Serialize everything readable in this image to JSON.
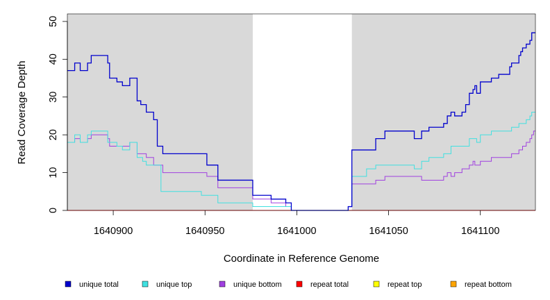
{
  "chart_data": {
    "type": "line",
    "title": "",
    "xlabel": "Coordinate in Reference Genome",
    "ylabel": "Read Coverage Depth",
    "xlim": [
      1640875,
      1641130
    ],
    "ylim": [
      0,
      52
    ],
    "x_ticks": [
      1640900,
      1640950,
      1641000,
      1641050,
      1641100
    ],
    "y_ticks": [
      0,
      10,
      20,
      30,
      40,
      50
    ],
    "shaded_regions": [
      [
        1640875,
        1640976
      ],
      [
        1641030,
        1641130
      ]
    ],
    "shade_color": "#d9d9d9",
    "legend_position": "bottom",
    "series": [
      {
        "name": "unique total",
        "color": "#0000cd",
        "points": [
          [
            1640875,
            37
          ],
          [
            1640879,
            37
          ],
          [
            1640879,
            39
          ],
          [
            1640882,
            39
          ],
          [
            1640882,
            37
          ],
          [
            1640886,
            37
          ],
          [
            1640886,
            39
          ],
          [
            1640888,
            39
          ],
          [
            1640888,
            41
          ],
          [
            1640897,
            41
          ],
          [
            1640897,
            39
          ],
          [
            1640898,
            39
          ],
          [
            1640898,
            35
          ],
          [
            1640902,
            35
          ],
          [
            1640902,
            34
          ],
          [
            1640905,
            34
          ],
          [
            1640905,
            33
          ],
          [
            1640909,
            33
          ],
          [
            1640909,
            35
          ],
          [
            1640913,
            35
          ],
          [
            1640913,
            29
          ],
          [
            1640915,
            29
          ],
          [
            1640915,
            28
          ],
          [
            1640918,
            28
          ],
          [
            1640918,
            26
          ],
          [
            1640922,
            26
          ],
          [
            1640922,
            24
          ],
          [
            1640924,
            24
          ],
          [
            1640924,
            17
          ],
          [
            1640927,
            17
          ],
          [
            1640927,
            15
          ],
          [
            1640951,
            15
          ],
          [
            1640951,
            12
          ],
          [
            1640957,
            12
          ],
          [
            1640957,
            8
          ],
          [
            1640976,
            8
          ],
          [
            1640976,
            4
          ],
          [
            1640986,
            4
          ],
          [
            1640986,
            3
          ],
          [
            1640994,
            3
          ],
          [
            1640994,
            2
          ],
          [
            1640997,
            2
          ],
          [
            1640997,
            0
          ],
          [
            1641028,
            0
          ],
          [
            1641028,
            1
          ],
          [
            1641030,
            1
          ],
          [
            1641030,
            16
          ],
          [
            1641043,
            16
          ],
          [
            1641043,
            19
          ],
          [
            1641048,
            19
          ],
          [
            1641048,
            21
          ],
          [
            1641064,
            21
          ],
          [
            1641064,
            19
          ],
          [
            1641068,
            19
          ],
          [
            1641068,
            21
          ],
          [
            1641072,
            21
          ],
          [
            1641072,
            22
          ],
          [
            1641080,
            22
          ],
          [
            1641080,
            23
          ],
          [
            1641082,
            23
          ],
          [
            1641082,
            25
          ],
          [
            1641084,
            25
          ],
          [
            1641084,
            26
          ],
          [
            1641086,
            26
          ],
          [
            1641086,
            25
          ],
          [
            1641090,
            25
          ],
          [
            1641090,
            26
          ],
          [
            1641092,
            26
          ],
          [
            1641092,
            28
          ],
          [
            1641094,
            28
          ],
          [
            1641094,
            31
          ],
          [
            1641096,
            31
          ],
          [
            1641096,
            32
          ],
          [
            1641097,
            32
          ],
          [
            1641097,
            33
          ],
          [
            1641098,
            33
          ],
          [
            1641098,
            31
          ],
          [
            1641100,
            31
          ],
          [
            1641100,
            34
          ],
          [
            1641106,
            34
          ],
          [
            1641106,
            35
          ],
          [
            1641110,
            35
          ],
          [
            1641110,
            36
          ],
          [
            1641116,
            36
          ],
          [
            1641116,
            38
          ],
          [
            1641117,
            38
          ],
          [
            1641117,
            39
          ],
          [
            1641121,
            39
          ],
          [
            1641121,
            41
          ],
          [
            1641122,
            41
          ],
          [
            1641122,
            42
          ],
          [
            1641123,
            42
          ],
          [
            1641123,
            43
          ],
          [
            1641125,
            43
          ],
          [
            1641125,
            44
          ],
          [
            1641127,
            44
          ],
          [
            1641127,
            45
          ],
          [
            1641128,
            45
          ],
          [
            1641128,
            47
          ],
          [
            1641130,
            47
          ]
        ]
      },
      {
        "name": "unique top",
        "color": "#40e0e0",
        "points": [
          [
            1640875,
            18
          ],
          [
            1640879,
            18
          ],
          [
            1640879,
            20
          ],
          [
            1640882,
            20
          ],
          [
            1640882,
            18
          ],
          [
            1640886,
            18
          ],
          [
            1640886,
            20
          ],
          [
            1640888,
            20
          ],
          [
            1640888,
            21
          ],
          [
            1640897,
            21
          ],
          [
            1640897,
            18
          ],
          [
            1640902,
            18
          ],
          [
            1640902,
            17
          ],
          [
            1640905,
            17
          ],
          [
            1640905,
            16
          ],
          [
            1640909,
            16
          ],
          [
            1640909,
            18
          ],
          [
            1640913,
            18
          ],
          [
            1640913,
            14
          ],
          [
            1640916,
            14
          ],
          [
            1640916,
            13
          ],
          [
            1640918,
            13
          ],
          [
            1640918,
            12
          ],
          [
            1640926,
            12
          ],
          [
            1640926,
            5
          ],
          [
            1640948,
            5
          ],
          [
            1640948,
            4
          ],
          [
            1640957,
            4
          ],
          [
            1640957,
            2
          ],
          [
            1640976,
            2
          ],
          [
            1640976,
            1
          ],
          [
            1640997,
            1
          ],
          [
            1640997,
            0
          ],
          [
            1641028,
            0
          ],
          [
            1641028,
            1
          ],
          [
            1641030,
            1
          ],
          [
            1641030,
            9
          ],
          [
            1641038,
            9
          ],
          [
            1641038,
            11
          ],
          [
            1641043,
            11
          ],
          [
            1641043,
            12
          ],
          [
            1641064,
            12
          ],
          [
            1641064,
            11
          ],
          [
            1641068,
            11
          ],
          [
            1641068,
            13
          ],
          [
            1641072,
            13
          ],
          [
            1641072,
            14
          ],
          [
            1641080,
            14
          ],
          [
            1641080,
            15
          ],
          [
            1641084,
            15
          ],
          [
            1641084,
            17
          ],
          [
            1641094,
            17
          ],
          [
            1641094,
            19
          ],
          [
            1641098,
            19
          ],
          [
            1641098,
            18
          ],
          [
            1641100,
            18
          ],
          [
            1641100,
            20
          ],
          [
            1641106,
            20
          ],
          [
            1641106,
            21
          ],
          [
            1641117,
            21
          ],
          [
            1641117,
            22
          ],
          [
            1641121,
            22
          ],
          [
            1641121,
            23
          ],
          [
            1641125,
            23
          ],
          [
            1641125,
            24
          ],
          [
            1641127,
            24
          ],
          [
            1641127,
            25
          ],
          [
            1641128,
            25
          ],
          [
            1641128,
            26
          ],
          [
            1641130,
            26
          ]
        ]
      },
      {
        "name": "unique bottom",
        "color": "#a040e0",
        "points": [
          [
            1640875,
            18
          ],
          [
            1640879,
            18
          ],
          [
            1640879,
            19
          ],
          [
            1640882,
            19
          ],
          [
            1640882,
            18
          ],
          [
            1640886,
            18
          ],
          [
            1640886,
            19
          ],
          [
            1640888,
            19
          ],
          [
            1640888,
            20
          ],
          [
            1640897,
            20
          ],
          [
            1640897,
            19
          ],
          [
            1640898,
            19
          ],
          [
            1640898,
            17
          ],
          [
            1640909,
            17
          ],
          [
            1640909,
            18
          ],
          [
            1640913,
            18
          ],
          [
            1640913,
            15
          ],
          [
            1640918,
            15
          ],
          [
            1640918,
            14
          ],
          [
            1640922,
            14
          ],
          [
            1640922,
            12
          ],
          [
            1640927,
            12
          ],
          [
            1640927,
            10
          ],
          [
            1640951,
            10
          ],
          [
            1640951,
            9
          ],
          [
            1640957,
            9
          ],
          [
            1640957,
            6
          ],
          [
            1640976,
            6
          ],
          [
            1640976,
            3
          ],
          [
            1640986,
            3
          ],
          [
            1640986,
            2
          ],
          [
            1640994,
            2
          ],
          [
            1640994,
            1
          ],
          [
            1640997,
            1
          ],
          [
            1640997,
            0
          ],
          [
            1641028,
            0
          ],
          [
            1641028,
            1
          ],
          [
            1641030,
            1
          ],
          [
            1641030,
            7
          ],
          [
            1641043,
            7
          ],
          [
            1641043,
            8
          ],
          [
            1641048,
            8
          ],
          [
            1641048,
            9
          ],
          [
            1641068,
            9
          ],
          [
            1641068,
            8
          ],
          [
            1641080,
            8
          ],
          [
            1641080,
            9
          ],
          [
            1641082,
            9
          ],
          [
            1641082,
            10
          ],
          [
            1641084,
            10
          ],
          [
            1641084,
            9
          ],
          [
            1641086,
            9
          ],
          [
            1641086,
            10
          ],
          [
            1641090,
            10
          ],
          [
            1641090,
            11
          ],
          [
            1641094,
            11
          ],
          [
            1641094,
            12
          ],
          [
            1641096,
            12
          ],
          [
            1641096,
            13
          ],
          [
            1641097,
            13
          ],
          [
            1641097,
            12
          ],
          [
            1641100,
            12
          ],
          [
            1641100,
            13
          ],
          [
            1641106,
            13
          ],
          [
            1641106,
            14
          ],
          [
            1641117,
            14
          ],
          [
            1641117,
            15
          ],
          [
            1641121,
            15
          ],
          [
            1641121,
            16
          ],
          [
            1641123,
            16
          ],
          [
            1641123,
            17
          ],
          [
            1641125,
            17
          ],
          [
            1641125,
            18
          ],
          [
            1641127,
            18
          ],
          [
            1641127,
            19
          ],
          [
            1641128,
            19
          ],
          [
            1641128,
            20
          ],
          [
            1641129,
            20
          ],
          [
            1641129,
            21
          ],
          [
            1641130,
            21
          ]
        ]
      },
      {
        "name": "repeat total",
        "color": "#ff0000",
        "points": [
          [
            1640875,
            0
          ],
          [
            1641130,
            0
          ]
        ]
      },
      {
        "name": "repeat top",
        "color": "#ffff00",
        "points": [
          [
            1640875,
            0
          ],
          [
            1641130,
            0
          ]
        ]
      },
      {
        "name": "repeat bottom",
        "color": "#ffa500",
        "points": [
          [
            1640875,
            0
          ],
          [
            1641130,
            0
          ]
        ]
      }
    ]
  }
}
